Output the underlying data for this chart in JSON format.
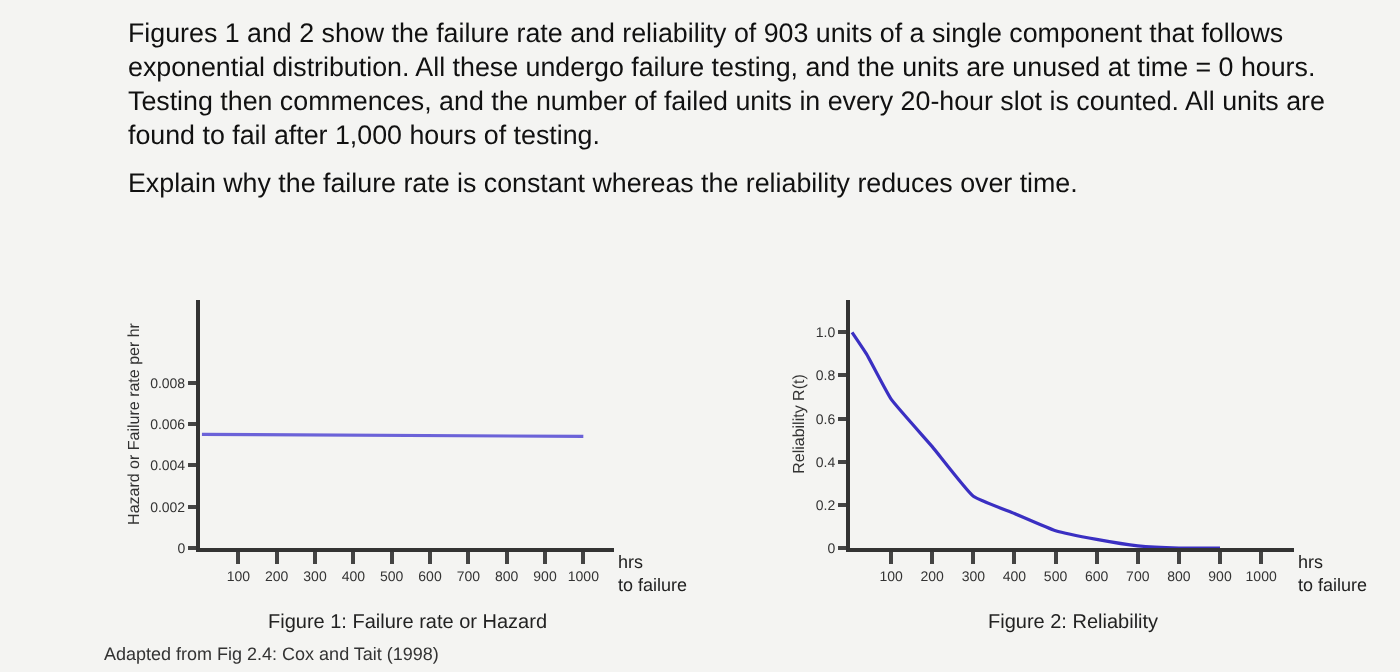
{
  "chart_data": [
    {
      "type": "line",
      "title": "Figure 1: Failure rate or Hazard",
      "subtitle": "Figures 1 and 2 show the failure rate and reliability of 903 units of a single component that follows exponential distribution. All these undergo failure testing, and the units are unused at time = 0 hours. Testing then commences, and the number of failed units in every 20-hour slot is counted. All units are found to fail after 1,000 hours of testing.",
      "annotations": [
        "Explain why the failure rate is constant whereas the reliability reduces over time.",
        "Adapted from Fig 2.4: Cox and Tait (1998)"
      ],
      "xlabel": "hrs to failure",
      "ylabel": "Hazard or Failure rate per hr",
      "x": [
        5,
        1000
      ],
      "series": [
        {
          "color": "#6b62d8",
          "values": [
            0.0055,
            0.0054
          ]
        }
      ],
      "xlim": [
        0,
        1080
      ],
      "xticks": [
        100,
        200,
        300,
        400,
        500,
        600,
        700,
        800,
        900,
        1000
      ],
      "ylim": [
        0,
        0.012
      ],
      "yticks": [
        0,
        0.002,
        0.004,
        0.006,
        0.008
      ],
      "grid": false
    },
    {
      "type": "line",
      "title": "Figure 2: Reliability",
      "xlabel": "hrs to failure",
      "ylabel": "Reliability R(t)",
      "x": [
        5,
        40,
        100,
        200,
        300,
        400,
        500,
        600,
        700,
        800,
        900
      ],
      "series": [
        {
          "color": "#3a2fc2",
          "values": [
            1.0,
            0.9,
            0.69,
            0.47,
            0.24,
            0.16,
            0.08,
            0.04,
            0.01,
            0,
            0
          ]
        }
      ],
      "xlim": [
        0,
        1080
      ],
      "xticks": [
        100,
        200,
        300,
        400,
        500,
        600,
        700,
        800,
        900,
        1000
      ],
      "ylim": [
        0,
        1.15
      ],
      "yticks": [
        0,
        0.2,
        0.4,
        0.6,
        0.8,
        {
          "value": 1,
          "label": "1.0"
        }
      ],
      "grid": false
    }
  ]
}
